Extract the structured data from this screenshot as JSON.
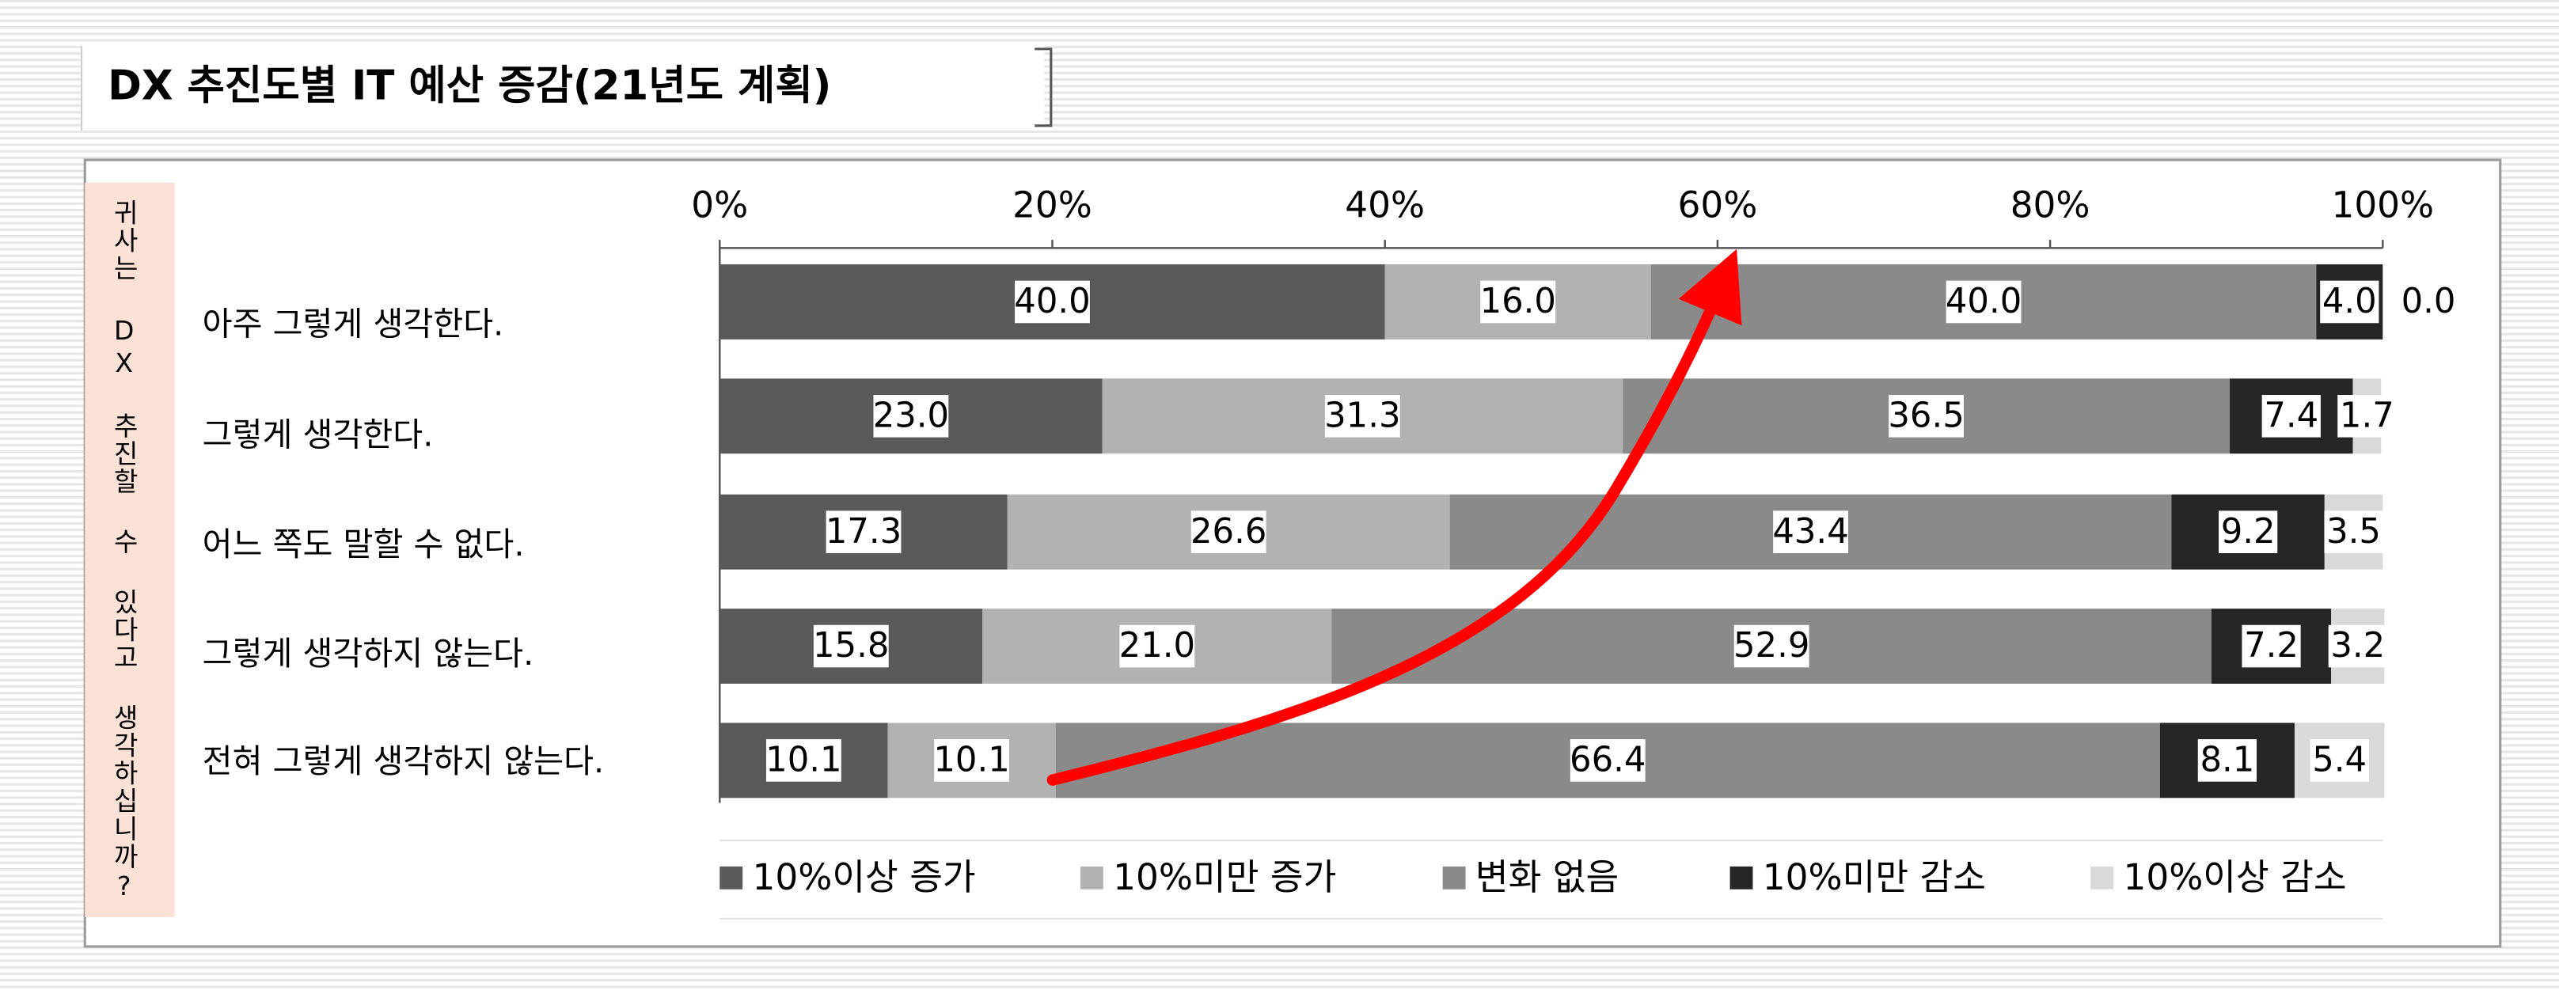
{
  "chart_data": {
    "type": "stacked-bar-horizontal",
    "title": "DX 추진도별 IT 예산 증감(21년도 계획)",
    "y_axis_label": "귀사는 DX 추진할 수 있다고 생각하십니까?",
    "categories": [
      "아주 그렇게 생각한다.",
      "그렇게 생각한다.",
      "어느 쪽도 말할 수 없다.",
      "그렇게 생각하지 않는다.",
      "전혀 그렇게 생각하지 않는다."
    ],
    "series": [
      {
        "name": "10%이상 증가",
        "color": "#5a5a5a",
        "values": [
          40.0,
          23.0,
          17.3,
          15.8,
          10.1
        ],
        "value_labels": [
          "40.0",
          "23.0",
          "17.3",
          "15.8",
          "10.1"
        ]
      },
      {
        "name": "10%미만 증가",
        "color": "#b2b2b2",
        "values": [
          16.0,
          31.3,
          26.6,
          21.0,
          10.1
        ],
        "value_labels": [
          "16.0",
          "31.3",
          "26.6",
          "21.0",
          "10.1"
        ]
      },
      {
        "name": "변화 없음",
        "color": "#8a8a8a",
        "values": [
          40.0,
          36.5,
          43.4,
          52.9,
          66.4
        ],
        "value_labels": [
          "40.0",
          "36.5",
          "43.4",
          "52.9",
          "66.4"
        ]
      },
      {
        "name": "10%미만 감소",
        "color": "#262626",
        "values": [
          4.0,
          7.4,
          9.2,
          7.2,
          8.1
        ],
        "value_labels": [
          "4.0",
          "7.4",
          "9.2",
          "7.2",
          "8.1"
        ]
      },
      {
        "name": "10%이상 감소",
        "color": "#d9d9d9",
        "values": [
          0.0,
          1.7,
          3.5,
          3.2,
          5.4
        ],
        "value_labels": [
          "0.0",
          "1.7",
          "3.5",
          "3.2",
          "5.4"
        ]
      }
    ],
    "xlim": [
      0,
      100
    ],
    "xticks": [
      {
        "value": 0,
        "label": "0%"
      },
      {
        "value": 20,
        "label": "20%"
      },
      {
        "value": 40,
        "label": "40%"
      },
      {
        "value": 60,
        "label": "60%"
      },
      {
        "value": 80,
        "label": "80%"
      },
      {
        "value": 100,
        "label": "100%"
      }
    ]
  }
}
